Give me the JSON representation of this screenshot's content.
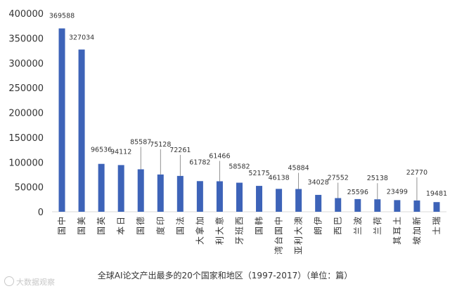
{
  "chart_data": {
    "type": "bar",
    "title": "全球AI论文产出最多的20个国家和地区（1997-2017）（单位：篇）",
    "categories": [
      "中国",
      "美国",
      "英国",
      "日本",
      "德国",
      "印度",
      "法国",
      "加拿大",
      "意大利",
      "西班牙",
      "韩国",
      "中国台湾",
      "澳大利亚",
      "伊朗",
      "巴西",
      "波兰",
      "荷兰",
      "土耳其",
      "新加坡",
      "瑞士"
    ],
    "values": [
      369588,
      327034,
      96536,
      94112,
      85587,
      75128,
      72261,
      61782,
      61466,
      58582,
      52175,
      46138,
      45884,
      34028,
      27552,
      25596,
      25138,
      23499,
      22770,
      19481
    ],
    "ylim": [
      0,
      400000
    ],
    "yticks": [
      0,
      50000,
      100000,
      150000,
      200000,
      250000,
      300000,
      350000,
      400000
    ],
    "xlabel": "",
    "ylabel": "",
    "bar_color": "#3d63b8",
    "leader_color": "#777777"
  },
  "watermark": "大数据观察"
}
